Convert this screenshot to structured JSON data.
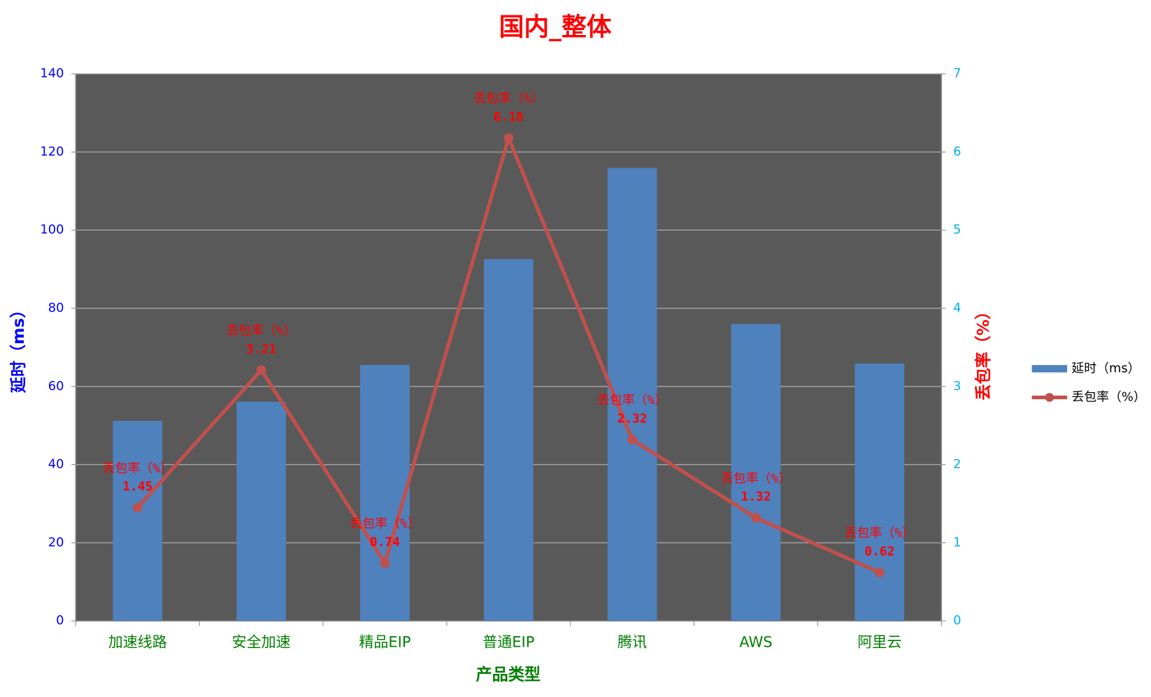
{
  "chart_data": {
    "type": "bar-line",
    "title": "国内_整体",
    "x_label": "产品类型",
    "y_label": "延时（ms）",
    "y2_label": "丢包率（%）",
    "categories": [
      "加速线路",
      "安全加速",
      "精品EIP",
      "普通EIP",
      "腾讯",
      "AWS",
      "阿里云"
    ],
    "series": [
      {
        "name": "延时（ms）",
        "type": "bar",
        "color": "#4f81bd",
        "values": [
          51.2,
          56.1,
          65.5,
          92.6,
          115.9,
          76.0,
          65.9
        ]
      },
      {
        "name": "丢包率（%）",
        "type": "line",
        "color": "#c0504d",
        "axis": "y2",
        "values": [
          1.45,
          3.21,
          0.74,
          6.18,
          2.32,
          1.32,
          0.62
        ]
      }
    ],
    "ylim": [
      0,
      140
    ],
    "yticks": [
      0,
      20,
      40,
      60,
      80,
      100,
      120,
      140
    ],
    "y2lim": [
      0,
      7
    ],
    "y2ticks": [
      0,
      1,
      2,
      3,
      4,
      5,
      6,
      7
    ],
    "grid": true,
    "legend": "right"
  }
}
